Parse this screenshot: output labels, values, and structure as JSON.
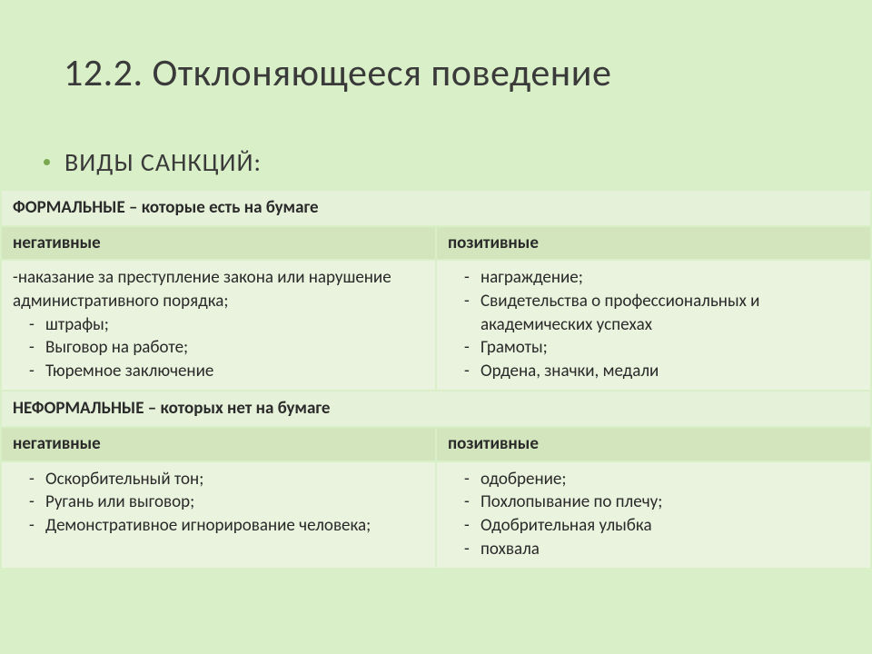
{
  "slide": {
    "title": "12.2. Отклоняющееся поведение",
    "subheading": "ВИДЫ САНКЦИЙ:"
  },
  "table": {
    "sections": [
      {
        "header": "ФОРМАЛЬНЫЕ – которые есть на бумаге",
        "columns": {
          "left": "негативные",
          "right": "позитивные"
        },
        "left": {
          "lead": "-наказание за преступление закона или нарушение административного порядка;",
          "items": [
            "штрафы;",
            "Выговор на работе;",
            "Тюремное заключение"
          ]
        },
        "right": {
          "items": [
            "награждение;",
            "Свидетельства о профессиональных и академических успехах",
            "Грамоты;",
            "Ордена, значки, медали"
          ]
        }
      },
      {
        "header": "НЕФОРМАЛЬНЫЕ – которых нет на бумаге",
        "columns": {
          "left": "негативные",
          "right": "позитивные"
        },
        "left": {
          "items": [
            "Оскорбительный тон;",
            "Ругань или выговор;",
            "Демонстративное игнорирование человека;"
          ]
        },
        "right": {
          "items": [
            "одобрение;",
            "Похлопывание по плечу;",
            "Одобрительная улыбка",
            "похвала"
          ]
        }
      }
    ]
  },
  "style": {
    "background_color": "#d8efc7",
    "section_header_bg": "#e5f1d9",
    "sub_header_bg": "#d2e5bc",
    "content_bg": "#eaf3dd",
    "bullet_color": "#7aa84f",
    "title_fontsize": 42,
    "subheading_fontsize": 28,
    "body_fontsize": 19
  }
}
